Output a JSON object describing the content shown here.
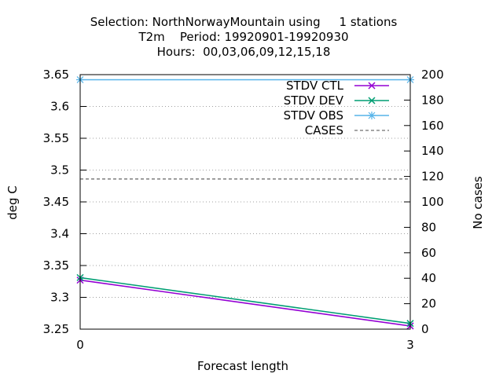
{
  "chart_data": {
    "type": "line",
    "title": [
      "Selection: NorthNorwayMountain using     1 stations",
      "T2m    Period: 19920901-19920930",
      "Hours:  00,03,06,09,12,15,18"
    ],
    "xlabel": "Forecast length",
    "ylabel": "deg C",
    "y2label": "No cases",
    "xlim": [
      0,
      3
    ],
    "ylim": [
      3.25,
      3.65
    ],
    "y2lim": [
      0,
      200
    ],
    "xticks": [
      "0",
      "3"
    ],
    "yticks": [
      "3.25",
      "3.3",
      "3.35",
      "3.4",
      "3.45",
      "3.5",
      "3.55",
      "3.6",
      "3.65"
    ],
    "y2ticks": [
      "0",
      "20",
      "40",
      "60",
      "80",
      "100",
      "120",
      "140",
      "160",
      "180",
      "200"
    ],
    "grid": "horizontal dotted",
    "legend_position": "top-right",
    "series": [
      {
        "name": "STDV CTL",
        "axis": "left",
        "color": "#9400d3",
        "marker": "x",
        "x": [
          0,
          3
        ],
        "y": [
          3.327,
          3.255
        ]
      },
      {
        "name": "STDV DEV",
        "axis": "left",
        "color": "#009e73",
        "marker": "x",
        "x": [
          0,
          3
        ],
        "y": [
          3.331,
          3.259
        ]
      },
      {
        "name": "STDV OBS",
        "axis": "left",
        "color": "#56b4e9",
        "marker": "x",
        "x": [
          0,
          3
        ],
        "y": [
          3.642,
          3.642
        ]
      },
      {
        "name": "CASES",
        "axis": "right",
        "color": "#888888",
        "dashed": true,
        "x": [
          0,
          3
        ],
        "y": [
          118,
          118
        ]
      }
    ]
  }
}
